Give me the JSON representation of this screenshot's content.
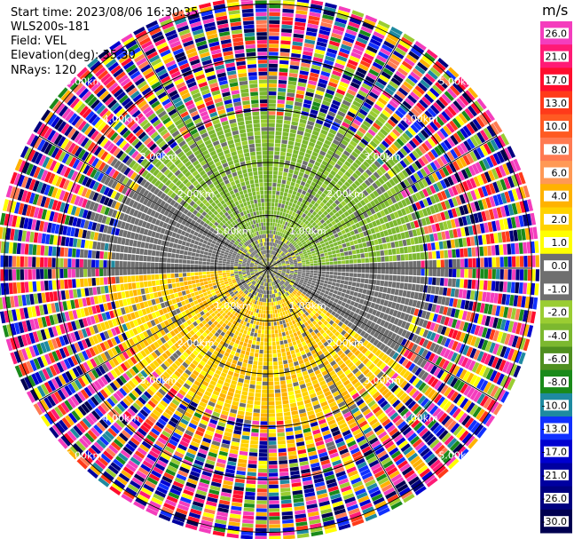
{
  "header": {
    "start_time": "Start time: 2023/08/06 16:30:35",
    "instrument": "WLS200s-181",
    "field": "Field: VEL",
    "elevation": "Elevation(deg): 35.30",
    "nrays": "NRays: 120"
  },
  "chart_data": {
    "type": "heatmap",
    "subtype": "ppi-polar",
    "field": "VEL",
    "units": "m/s",
    "nrays": 120,
    "elevation_deg": 35.3,
    "range_rings_km": [
      1,
      2,
      3,
      4,
      5
    ],
    "range_ring_labels": [
      "1.00km",
      "2.00km",
      "3.00km",
      "4.00km",
      "5.00km"
    ],
    "colorbar": {
      "units": "m/s",
      "min": -30.0,
      "max": 30.0,
      "tick_labels": [
        "26.0",
        "21.0",
        "17.0",
        "13.0",
        "10.0",
        "8.0",
        "6.0",
        "4.0",
        "2.0",
        "1.0",
        "0.0",
        "-1.0",
        "-2.0",
        "-4.0",
        "-6.0",
        "-8.0",
        "-10.0",
        "-13.0",
        "-17.0",
        "-21.0",
        "-26.0",
        "-30.0"
      ],
      "colors": [
        "#f43dbd",
        "#ff1a75",
        "#ff0d2e",
        "#ff3a1a",
        "#ff5a22",
        "#ff7a52",
        "#ff9955",
        "#ffb200",
        "#ffd200",
        "#ffff00",
        "#6f6f6f",
        "#6f6f6f",
        "#9acd32",
        "#7cb82f",
        "#4f8f1f",
        "#1a8a1a",
        "#1e8aa0",
        "#1030ff",
        "#0000d0",
        "#0000a0",
        "#000080",
        "#000050"
      ]
    }
  }
}
